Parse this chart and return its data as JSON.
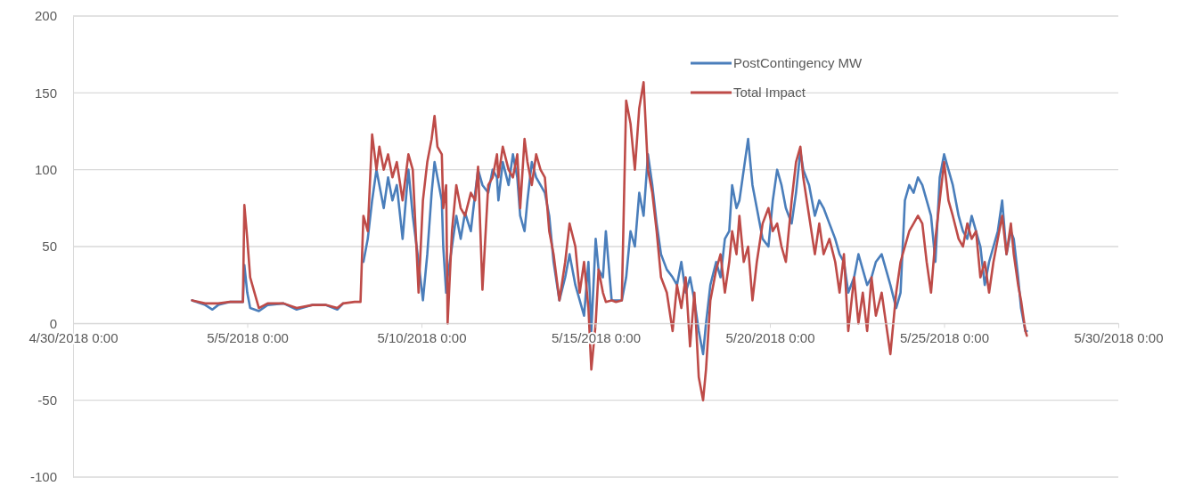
{
  "chart_data": {
    "type": "line",
    "x": [
      "2018-05-03T10:00",
      "2018-05-03T19:00",
      "2018-05-04T00:00",
      "2018-05-04T04:00",
      "2018-05-04T12:00",
      "2018-05-04T21:00",
      "2018-05-04T22:00",
      "2018-05-05T00:00",
      "2018-05-05T02:00",
      "2018-05-05T08:00",
      "2018-05-05T14:00",
      "2018-05-06T01:00",
      "2018-05-06T10:00",
      "2018-05-06T21:00",
      "2018-05-07T06:00",
      "2018-05-07T14:00",
      "2018-05-07T18:00",
      "2018-05-08T02:00",
      "2018-05-08T06:00",
      "2018-05-08T08:00",
      "2018-05-08T11:00",
      "2018-05-08T14:00",
      "2018-05-08T17:00",
      "2018-05-08T19:00",
      "2018-05-08T22:00",
      "2018-05-09T01:00",
      "2018-05-09T04:00",
      "2018-05-09T07:00",
      "2018-05-09T11:00",
      "2018-05-09T15:00",
      "2018-05-09T18:00",
      "2018-05-09T22:00",
      "2018-05-10T01:00",
      "2018-05-10T04:00",
      "2018-05-10T07:00",
      "2018-05-10T09:00",
      "2018-05-10T11:00",
      "2018-05-10T14:00",
      "2018-05-10T15:00",
      "2018-05-10T17:00",
      "2018-05-10T18:00",
      "2018-05-10T21:00",
      "2018-05-11T00:00",
      "2018-05-11T03:00",
      "2018-05-11T06:00",
      "2018-05-11T10:00",
      "2018-05-11T13:00",
      "2018-05-11T15:00",
      "2018-05-11T18:00",
      "2018-05-11T22:00",
      "2018-05-12T01:00",
      "2018-05-12T04:00",
      "2018-05-12T05:00",
      "2018-05-12T08:00",
      "2018-05-12T12:00",
      "2018-05-12T15:00",
      "2018-05-12T18:00",
      "2018-05-12T20:00",
      "2018-05-12T23:00",
      "2018-05-13T01:00",
      "2018-05-13T04:00",
      "2018-05-13T07:00",
      "2018-05-13T10:00",
      "2018-05-13T13:00",
      "2018-05-13T16:00",
      "2018-05-13T19:00",
      "2018-05-13T23:00",
      "2018-05-14T03:00",
      "2018-05-14T06:00",
      "2018-05-14T10:00",
      "2018-05-14T13:00",
      "2018-05-14T16:00",
      "2018-05-14T19:00",
      "2018-05-14T21:00",
      "2018-05-15T00:00",
      "2018-05-15T02:00",
      "2018-05-15T05:00",
      "2018-05-15T07:00",
      "2018-05-15T11:00",
      "2018-05-15T14:00",
      "2018-05-15T18:00",
      "2018-05-15T21:00",
      "2018-05-16T00:00",
      "2018-05-16T03:00",
      "2018-05-16T06:00",
      "2018-05-16T09:00",
      "2018-05-16T12:00",
      "2018-05-16T15:00",
      "2018-05-16T18:00",
      "2018-05-16T21:00",
      "2018-05-17T01:00",
      "2018-05-17T05:00",
      "2018-05-17T08:00",
      "2018-05-17T11:00",
      "2018-05-17T14:00",
      "2018-05-17T17:00",
      "2018-05-17T20:00",
      "2018-05-17T23:00",
      "2018-05-18T02:00",
      "2018-05-18T04:00",
      "2018-05-18T07:00",
      "2018-05-18T11:00",
      "2018-05-18T14:00",
      "2018-05-18T17:00",
      "2018-05-18T20:00",
      "2018-05-18T22:00",
      "2018-05-19T01:00",
      "2018-05-19T03:00",
      "2018-05-19T06:00",
      "2018-05-19T09:00",
      "2018-05-19T12:00",
      "2018-05-19T15:00",
      "2018-05-19T19:00",
      "2018-05-19T23:00",
      "2018-05-20T02:00",
      "2018-05-20T05:00",
      "2018-05-20T08:00",
      "2018-05-20T11:00",
      "2018-05-20T15:00",
      "2018-05-20T18:00",
      "2018-05-20T21:00",
      "2018-05-20T23:00",
      "2018-05-21T03:00",
      "2018-05-21T07:00",
      "2018-05-21T10:00",
      "2018-05-21T13:00",
      "2018-05-21T17:00",
      "2018-05-21T21:00",
      "2018-05-22T00:00",
      "2018-05-22T03:00",
      "2018-05-22T06:00",
      "2018-05-22T10:00",
      "2018-05-22T13:00",
      "2018-05-22T16:00",
      "2018-05-22T19:00",
      "2018-05-22T22:00",
      "2018-05-23T01:00",
      "2018-05-23T05:00",
      "2018-05-23T08:00",
      "2018-05-23T11:00",
      "2018-05-23T15:00",
      "2018-05-23T18:00",
      "2018-05-23T21:00",
      "2018-05-24T00:00",
      "2018-05-24T03:00",
      "2018-05-24T06:00",
      "2018-05-24T09:00",
      "2018-05-24T12:00",
      "2018-05-24T15:00",
      "2018-05-24T18:00",
      "2018-05-24T21:00",
      "2018-05-25T00:00",
      "2018-05-25T03:00",
      "2018-05-25T06:00",
      "2018-05-25T10:00",
      "2018-05-25T13:00",
      "2018-05-25T16:00",
      "2018-05-25T19:00",
      "2018-05-25T22:00",
      "2018-05-26T01:00",
      "2018-05-26T04:00",
      "2018-05-26T07:00",
      "2018-05-26T10:00",
      "2018-05-26T13:00",
      "2018-05-26T16:00",
      "2018-05-26T19:00",
      "2018-05-26T22:00",
      "2018-05-27T00:00",
      "2018-05-27T03:00",
      "2018-05-27T05:00",
      "2018-05-27T08:00",
      "2018-05-27T09:00"
    ],
    "series": [
      {
        "name": "PostContingency MW",
        "color": "#4a7ebb",
        "values": [
          15,
          12,
          9,
          12,
          14,
          14,
          38,
          20,
          10,
          8,
          12,
          13,
          9,
          12,
          12,
          9,
          13,
          null,
          null,
          40,
          55,
          80,
          100,
          90,
          75,
          95,
          80,
          90,
          55,
          100,
          70,
          40,
          15,
          45,
          85,
          105,
          95,
          80,
          50,
          20,
          30,
          50,
          70,
          55,
          72,
          60,
          85,
          100,
          90,
          85,
          100,
          95,
          80,
          105,
          90,
          110,
          95,
          70,
          60,
          80,
          105,
          95,
          90,
          85,
          70,
          40,
          15,
          30,
          45,
          25,
          15,
          5,
          40,
          -5,
          55,
          35,
          30,
          60,
          15,
          15,
          15,
          30,
          60,
          50,
          85,
          70,
          110,
          90,
          65,
          45,
          35,
          30,
          25,
          40,
          20,
          30,
          15,
          -5,
          -20,
          0,
          25,
          40,
          30,
          55,
          60,
          90,
          75,
          80,
          100,
          120,
          90,
          75,
          55,
          50,
          80,
          100,
          90,
          75,
          65,
          85,
          112,
          100,
          90,
          70,
          80,
          75,
          65,
          55,
          45,
          40,
          20,
          30,
          45,
          35,
          25,
          30,
          40,
          45,
          35,
          25,
          10,
          20,
          80,
          90,
          85,
          95,
          90,
          80,
          70,
          40,
          95,
          110,
          100,
          90,
          70,
          60,
          55,
          70,
          60,
          50,
          25,
          40,
          50,
          60,
          80,
          45,
          60,
          55,
          30,
          10,
          -5,
          -5
        ]
      },
      {
        "name": "Total Impact",
        "color": "#be4b48",
        "values": [
          15,
          13,
          13,
          13,
          14,
          14,
          77,
          55,
          30,
          10,
          13,
          13,
          10,
          12,
          12,
          10,
          13,
          14,
          14,
          70,
          60,
          123,
          100,
          115,
          100,
          110,
          95,
          105,
          80,
          110,
          100,
          20,
          80,
          105,
          120,
          135,
          115,
          110,
          75,
          90,
          0,
          60,
          90,
          75,
          70,
          85,
          80,
          102,
          22,
          90,
          95,
          110,
          95,
          115,
          100,
          95,
          110,
          75,
          120,
          105,
          90,
          110,
          100,
          95,
          60,
          45,
          15,
          40,
          65,
          50,
          20,
          40,
          10,
          -30,
          0,
          35,
          20,
          14,
          15,
          14,
          15,
          145,
          130,
          100,
          140,
          157,
          100,
          85,
          60,
          30,
          20,
          -5,
          25,
          10,
          30,
          -15,
          20,
          -35,
          -50,
          -30,
          15,
          35,
          45,
          20,
          40,
          60,
          45,
          70,
          40,
          50,
          15,
          40,
          65,
          75,
          60,
          65,
          50,
          40,
          80,
          105,
          115,
          95,
          70,
          45,
          65,
          45,
          55,
          40,
          20,
          45,
          -5,
          30,
          0,
          20,
          -5,
          30,
          5,
          20,
          0,
          -20,
          20,
          40,
          50,
          60,
          65,
          70,
          65,
          40,
          20,
          55,
          80,
          105,
          80,
          70,
          55,
          50,
          65,
          55,
          60,
          30,
          40,
          20,
          40,
          55,
          70,
          45,
          65,
          45,
          25,
          15,
          -5,
          -8
        ]
      }
    ],
    "xlim": [
      "2018-04-30",
      "2018-05-30"
    ],
    "xticks": [
      {
        "value": "2018-04-30",
        "label": "4/30/2018 0:00"
      },
      {
        "value": "2018-05-05",
        "label": "5/5/2018 0:00"
      },
      {
        "value": "2018-05-10",
        "label": "5/10/2018 0:00"
      },
      {
        "value": "2018-05-15",
        "label": "5/15/2018 0:00"
      },
      {
        "value": "2018-05-20",
        "label": "5/20/2018 0:00"
      },
      {
        "value": "2018-05-25",
        "label": "5/25/2018 0:00"
      },
      {
        "value": "2018-05-30",
        "label": "5/30/2018 0:00"
      }
    ],
    "ylim": [
      -100,
      200
    ],
    "yticks": [
      -100,
      -50,
      0,
      50,
      100,
      150,
      200
    ],
    "grid": "y",
    "legend": "top right",
    "marker": "none",
    "line_style": "solid"
  }
}
